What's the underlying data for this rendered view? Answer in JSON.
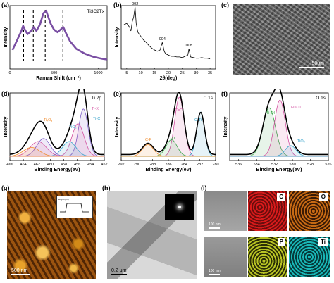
{
  "figure": {
    "labels": [
      "(a)",
      "(b)",
      "(c)",
      "(d)",
      "(e)",
      "(f)",
      "(g)",
      "(h)",
      "(i)"
    ]
  },
  "chart_data": [
    {
      "panel": "(a)",
      "type": "line",
      "title": "Ti3C2Tx",
      "xlabel": "Raman Shift (cm⁻¹)",
      "ylabel": "Intensity",
      "xlim": [
        0,
        1100
      ],
      "xticks": [
        0,
        500,
        1000
      ],
      "x": [
        30,
        80,
        130,
        150,
        170,
        200,
        240,
        270,
        300,
        340,
        380,
        410,
        430,
        460,
        500,
        540,
        580,
        605,
        630,
        680,
        750,
        850,
        950,
        1050,
        1100
      ],
      "values": [
        0.3,
        0.45,
        0.6,
        0.68,
        0.62,
        0.55,
        0.6,
        0.66,
        0.6,
        0.7,
        0.88,
        0.92,
        0.84,
        0.72,
        0.62,
        0.58,
        0.63,
        0.66,
        0.58,
        0.44,
        0.32,
        0.24,
        0.19,
        0.16,
        0.15
      ],
      "dashed_lines_x": [
        155,
        265,
        400,
        600
      ],
      "color": "#7a4fa3"
    },
    {
      "panel": "(b)",
      "type": "line",
      "xlabel": "2θ(deg)",
      "ylabel": "Intensity",
      "xlim": [
        3,
        37
      ],
      "xticks": [
        5,
        10,
        15,
        20,
        25,
        30,
        35
      ],
      "peak_labels": [
        "002",
        "004",
        "008"
      ],
      "peak_x": [
        8.0,
        17.8,
        27.4
      ],
      "x": [
        4,
        5,
        6,
        6.5,
        7,
        7.5,
        8,
        8.4,
        9,
        10,
        11,
        12,
        13,
        14,
        15,
        16,
        17,
        17.8,
        18.5,
        19,
        20,
        21,
        22,
        23,
        24,
        25,
        26,
        27,
        27.4,
        28,
        29,
        30,
        31,
        32,
        33,
        34,
        35
      ],
      "values": [
        0.7,
        0.72,
        0.66,
        0.6,
        0.75,
        0.82,
        0.98,
        0.72,
        0.58,
        0.52,
        0.46,
        0.42,
        0.37,
        0.33,
        0.3,
        0.28,
        0.3,
        0.42,
        0.28,
        0.24,
        0.22,
        0.2,
        0.2,
        0.19,
        0.19,
        0.18,
        0.2,
        0.22,
        0.32,
        0.19,
        0.18,
        0.17,
        0.17,
        0.18,
        0.17,
        0.17,
        0.16
      ]
    },
    {
      "panel": "(d)",
      "type": "area",
      "title": "Ti 2p",
      "xlabel": "Binding Energy(eV)",
      "ylabel": "Intensity",
      "xlim": [
        466,
        452
      ],
      "xticks": [
        466,
        464,
        462,
        460,
        458,
        456,
        454,
        452
      ],
      "peak_labels": [
        "Ti-X",
        "Ti-C",
        "TiO₂",
        "TiₓOᵧ"
      ],
      "peaks": [
        {
          "center": 455.1,
          "height": 0.8,
          "width": 0.7,
          "color": "#7a5cc7"
        },
        {
          "center": 455.9,
          "height": 0.55,
          "width": 0.9,
          "color": "#d24fa0"
        },
        {
          "center": 457.2,
          "height": 0.25,
          "width": 1.0,
          "color": "#2f9fc9"
        },
        {
          "center": 461.0,
          "height": 0.3,
          "width": 1.0,
          "color": "#7a5cc7"
        },
        {
          "center": 461.8,
          "height": 0.25,
          "width": 1.2,
          "color": "#d24fa0"
        },
        {
          "center": 462.8,
          "height": 0.15,
          "width": 1.2,
          "color": "#f08a2b"
        }
      ]
    },
    {
      "panel": "(e)",
      "type": "area",
      "title": "C 1s",
      "xlabel": "Binding Energy(eV)",
      "ylabel": "Intensity",
      "xlim": [
        292,
        280
      ],
      "xticks": [
        292,
        290,
        288,
        286,
        284,
        282,
        280
      ],
      "peak_labels": [
        "C=C",
        "C-Ti",
        "C-O",
        "C-F"
      ],
      "peaks": [
        {
          "center": 284.6,
          "height": 1.0,
          "width": 0.6,
          "color": "#d24fa0"
        },
        {
          "center": 281.9,
          "height": 0.75,
          "width": 0.5,
          "color": "#2f9fc9"
        },
        {
          "center": 285.6,
          "height": 0.28,
          "width": 0.7,
          "color": "#3aa64a"
        },
        {
          "center": 288.6,
          "height": 0.2,
          "width": 0.7,
          "color": "#f08a2b"
        }
      ]
    },
    {
      "panel": "(f)",
      "type": "area",
      "title": "O 1s",
      "xlabel": "Binding Energy(eV)",
      "ylabel": "Intensity",
      "xlim": [
        537,
        526
      ],
      "xticks": [
        536,
        534,
        532,
        530,
        528,
        526
      ],
      "peak_labels": [
        "Ti-OH",
        "Ti-O-Ti",
        "TiO₂"
      ],
      "peaks": [
        {
          "center": 532.6,
          "height": 0.82,
          "width": 0.7,
          "color": "#3aa64a"
        },
        {
          "center": 531.4,
          "height": 0.95,
          "width": 0.6,
          "color": "#d24fa0"
        },
        {
          "center": 530.2,
          "height": 0.18,
          "width": 0.6,
          "color": "#2f9fc9"
        }
      ]
    }
  ],
  "micrographs": {
    "c": {
      "scale": "50um"
    },
    "g": {
      "scale": "500 nm",
      "inset_label": "Height (nm)"
    },
    "h": {
      "scale": "0.2 μm"
    },
    "i": {
      "elements": [
        "C",
        "O",
        "P",
        "Ti"
      ],
      "scale": "100 nm"
    }
  }
}
